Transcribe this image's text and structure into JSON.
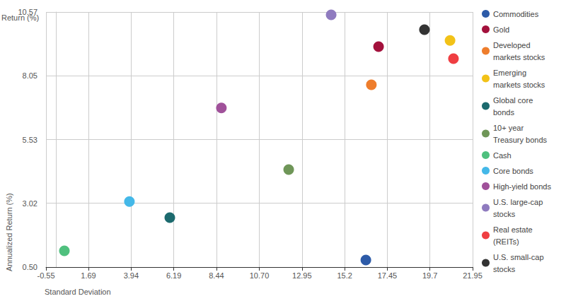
{
  "chart_data": {
    "type": "scatter",
    "x_label": "Standard Deviation",
    "y_label": "Annualized Return (%)",
    "annotations": [
      "Return (%)"
    ],
    "xlim": [
      -0.55,
      21.95
    ],
    "xticks": [
      -0.55,
      1.69,
      3.94,
      6.19,
      8.44,
      {
        "value": 10.7,
        "label": "10.70"
      },
      12.95,
      15.2,
      17.45,
      19.7,
      21.95
    ],
    "ylim": [
      0.5,
      10.57
    ],
    "yticks": [
      {
        "value": 0.5,
        "label": "0.50"
      },
      3.02,
      5.53,
      8.05,
      10.57
    ],
    "grid": true,
    "legend": "top-right",
    "marker": "circle",
    "series": [
      {
        "name": "Commodities",
        "color": "#2d5ba8",
        "x": [
          16.32
        ],
        "values": [
          0.78
        ]
      },
      {
        "name": "Gold",
        "color": "#a3113c",
        "x": [
          16.99
        ],
        "values": [
          9.2
        ]
      },
      {
        "name": "Developed markets stocks",
        "color": "#ee7d2c",
        "x": [
          16.61
        ],
        "values": [
          7.7
        ]
      },
      {
        "name": "Emerging markets stocks",
        "color": "#f2c218",
        "x": [
          20.76
        ],
        "values": [
          9.45
        ]
      },
      {
        "name": "Global core bonds",
        "color": "#1c6a6e",
        "x": [
          5.98
        ],
        "values": [
          2.45
        ]
      },
      {
        "name": "10+ year Treasury bonds",
        "color": "#6f9658",
        "x": [
          12.25
        ],
        "values": [
          4.35
        ]
      },
      {
        "name": "Cash",
        "color": "#4fc07e",
        "x": [
          0.42
        ],
        "values": [
          1.14
        ]
      },
      {
        "name": "Core bonds",
        "color": "#44b8e8",
        "x": [
          3.85
        ],
        "values": [
          3.09
        ]
      },
      {
        "name": "High-yield bonds",
        "color": "#a0519a",
        "x": [
          8.7
        ],
        "values": [
          6.78
        ]
      },
      {
        "name": "U.S. large-cap stocks",
        "color": "#8f7bbf",
        "x": [
          14.49
        ],
        "values": [
          10.46
        ]
      },
      {
        "name": "Real estate (REITs)",
        "color": "#ef3e42",
        "x": [
          20.94
        ],
        "values": [
          8.73
        ]
      },
      {
        "name": "U.S. small-cap stocks",
        "color": "#333333",
        "x": [
          19.41
        ],
        "values": [
          9.87
        ]
      }
    ]
  }
}
